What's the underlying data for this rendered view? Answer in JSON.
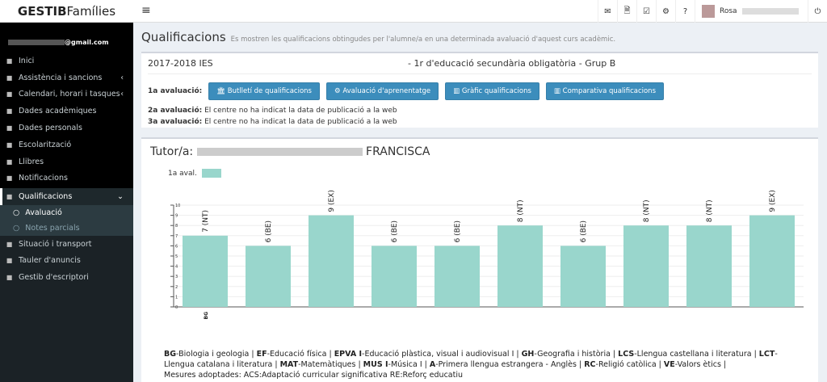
{
  "brand": {
    "bold": "GESTIB",
    "light": "Famílies"
  },
  "topbar": {
    "icons": [
      "envelope-icon",
      "file-icon",
      "check-square-icon",
      "cogs-icon",
      "question-icon"
    ],
    "user_name": "Rosa",
    "logout_icon": "power-icon"
  },
  "sidebar": {
    "email": "@gmail.com",
    "items": [
      {
        "label": "Inici",
        "icon": "home-icon"
      },
      {
        "label": "Assistència i sancions",
        "icon": "calendar-check-icon",
        "chev": "‹"
      },
      {
        "label": "Calendari, horari i tasques",
        "icon": "calendar-icon",
        "chev": "‹"
      },
      {
        "label": "Dades acadèmiques",
        "icon": "briefcase-icon"
      },
      {
        "label": "Dades personals",
        "icon": "user-icon"
      },
      {
        "label": "Escolarització",
        "icon": "book-icon"
      },
      {
        "label": "Llibres",
        "icon": "books-icon"
      },
      {
        "label": "Notificacions",
        "icon": "mobile-icon"
      },
      {
        "label": "Qualificacions",
        "icon": "bank-icon",
        "chev": "⌄"
      },
      {
        "label": "Situació i transport",
        "icon": "map-marker-icon"
      },
      {
        "label": "Tauler d'anuncis",
        "icon": "newspaper-icon"
      },
      {
        "label": "Gestib d'escriptori",
        "icon": "sign-in-icon"
      }
    ],
    "subitems": [
      {
        "label": "Avaluació"
      },
      {
        "label": "Notes parcials"
      }
    ]
  },
  "page": {
    "title": "Qualificacions",
    "subtitle": "Es mostren les qualificacions obtingudes per l'alumne/a en una determinada avaluació d'aquest curs acadèmic."
  },
  "info": {
    "year": "2017-2018 IES",
    "course": "- 1r d'educació secundària obligatòria - Grup B",
    "eval1_label": "1a avaluació:",
    "buttons": [
      "Butlletí de qualificacions",
      "Avaluació d'aprenentatge",
      "Gràfic qualificacions",
      "Comparativa qualificacions"
    ],
    "eval2_label": "2a avaluació:",
    "eval2_text": "El centre no ha indicat la data de publicació a la web",
    "eval3_label": "3a avaluació:",
    "eval3_text": "El centre no ha indicat la data de publicació a la web"
  },
  "tutor": {
    "label": "Tutor/a:",
    "name": "FRANCISCA"
  },
  "chart_data": {
    "type": "bar",
    "categories": [
      "BG",
      "",
      "",
      "",
      "",
      "",
      "",
      "",
      "",
      ""
    ],
    "values": [
      7,
      6,
      9,
      6,
      6,
      8,
      6,
      8,
      8,
      9
    ],
    "data_labels": [
      "7 (NT)",
      "6 (BE)",
      "9 (EX)",
      "6 (BE)",
      "6 (BE)",
      "8 (NT)",
      "6 (BE)",
      "8 (NT)",
      "8 (NT)",
      "9 (EX)"
    ],
    "series": [
      {
        "name": "1a aval.",
        "values": [
          7,
          6,
          9,
          6,
          6,
          8,
          6,
          8,
          8,
          9
        ]
      }
    ],
    "ylim": [
      0,
      10
    ],
    "yticks": [
      0,
      1,
      2,
      3,
      4,
      5,
      6,
      7,
      8,
      9,
      10
    ],
    "grid": true,
    "legend": "top-left",
    "color": "#99d6cc"
  },
  "footnote": {
    "parts": [
      [
        "BG",
        "-Biologia i geologia | "
      ],
      [
        "EF",
        "-Educació física | "
      ],
      [
        "EPVA I",
        "-Educació plàstica, visual i audiovisual I | "
      ],
      [
        "GH",
        "-Geografia i història | "
      ],
      [
        "LCS",
        "-Llengua castellana i literatura | "
      ],
      [
        "LCT",
        "-Llengua catalana i literatura | "
      ],
      [
        "MAT",
        "-Matemàtiques | "
      ],
      [
        "MUS I",
        "-Música I | "
      ],
      [
        "A",
        "-Primera llengua estrangera - Anglès | "
      ],
      [
        "RC",
        "-Religió catòlica | "
      ],
      [
        "VE",
        "-Valors ètics |"
      ]
    ],
    "measures": "Mesures adoptades: ACS:Adaptació curricular significativa RE:Reforç educatiu"
  }
}
